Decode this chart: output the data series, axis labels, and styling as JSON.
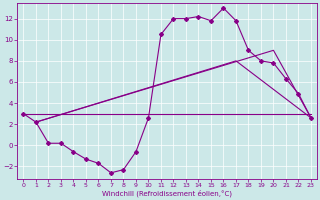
{
  "xlabel": "Windchill (Refroidissement éolien,°C)",
  "bg_color": "#cce8e8",
  "line_color": "#880088",
  "xlim": [
    -0.5,
    23.5
  ],
  "ylim": [
    -3.2,
    13.5
  ],
  "xticks": [
    0,
    1,
    2,
    3,
    4,
    5,
    6,
    7,
    8,
    9,
    10,
    11,
    12,
    13,
    14,
    15,
    16,
    17,
    18,
    19,
    20,
    21,
    22,
    23
  ],
  "yticks": [
    -2,
    0,
    2,
    4,
    6,
    8,
    10,
    12
  ],
  "curve1_x": [
    0,
    1,
    2,
    3,
    4,
    5,
    6,
    7,
    8,
    9,
    10,
    11,
    12,
    13,
    14,
    15,
    16,
    17,
    18,
    19,
    20,
    21,
    22,
    23
  ],
  "curve1_y": [
    3.0,
    2.2,
    0.2,
    0.2,
    -0.6,
    -1.3,
    -1.7,
    -2.6,
    -2.3,
    -0.6,
    2.6,
    10.5,
    12.0,
    12.0,
    12.2,
    11.8,
    13.0,
    11.8,
    9.0,
    8.0,
    7.8,
    6.3,
    4.9,
    2.6
  ],
  "flat_line_x": [
    0,
    23
  ],
  "flat_line_y": [
    3.0,
    3.0
  ],
  "tri_line1_x": [
    1,
    20,
    23
  ],
  "tri_line1_y": [
    2.2,
    9.0,
    2.6
  ],
  "tri_line2_x": [
    1,
    17,
    23
  ],
  "tri_line2_y": [
    2.2,
    8.0,
    2.6
  ]
}
